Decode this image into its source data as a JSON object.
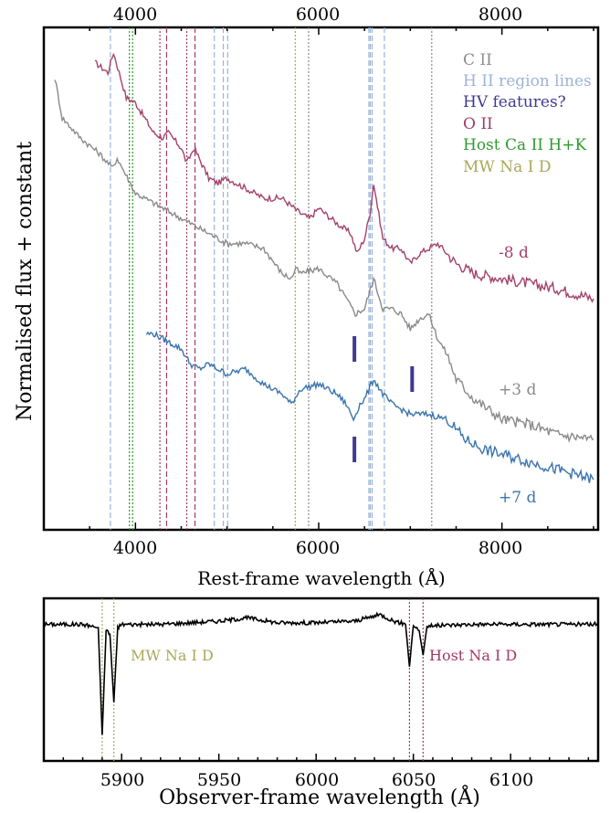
{
  "chart_data": [
    {
      "type": "line",
      "xlabel": "Rest-frame wavelength (Å)",
      "ylabel": "Normalised flux + constant",
      "xlim": [
        3000,
        9050
      ],
      "ylim": [
        0,
        1
      ],
      "x_ticks_bottom": [
        "4000",
        "6000",
        "8000"
      ],
      "x_ticks_top": [
        "4000",
        "6000",
        "8000"
      ],
      "legend_placement": "top-right",
      "legend": [
        {
          "label": "C II",
          "color": "#8c8c8c"
        },
        {
          "label": "H II region lines",
          "color": "#9bb4d6"
        },
        {
          "label": "HV features?",
          "color": "#3f3a8f"
        },
        {
          "label": "O II",
          "color": "#a23a64"
        },
        {
          "label": "Host Ca II H+K",
          "color": "#2f9a2f"
        },
        {
          "label": "MW Na I D",
          "color": "#a8a85a"
        }
      ],
      "series": [
        {
          "label": "-8 d",
          "color": "#a4426b",
          "x": [
            3560,
            3700,
            3760,
            3900,
            4000,
            4100,
            4200,
            4300,
            4360,
            4500,
            4560,
            4640,
            4800,
            4900,
            5000,
            5200,
            5400,
            5600,
            5800,
            5900,
            6000,
            6200,
            6350,
            6420,
            6500,
            6560,
            6600,
            6700,
            6800,
            6900,
            7000,
            7100,
            7300,
            7500,
            7700,
            8000,
            8300,
            8600,
            9000
          ],
          "y": [
            0.93,
            0.91,
            0.95,
            0.86,
            0.85,
            0.82,
            0.79,
            0.78,
            0.79,
            0.76,
            0.73,
            0.76,
            0.7,
            0.69,
            0.7,
            0.68,
            0.66,
            0.66,
            0.63,
            0.62,
            0.64,
            0.61,
            0.59,
            0.55,
            0.58,
            0.63,
            0.69,
            0.58,
            0.56,
            0.56,
            0.53,
            0.55,
            0.57,
            0.53,
            0.51,
            0.5,
            0.49,
            0.48,
            0.46
          ]
        },
        {
          "label": "+3 d",
          "color": "#8a8a8a",
          "x": [
            3120,
            3200,
            3400,
            3600,
            3750,
            3800,
            4000,
            4200,
            4400,
            4600,
            4800,
            5000,
            5200,
            5400,
            5600,
            5700,
            5750,
            5800,
            6000,
            6200,
            6400,
            6500,
            6600,
            6700,
            6800,
            6900,
            7000,
            7100,
            7200,
            7300,
            7400,
            7500,
            7700,
            8000,
            8300,
            8600,
            9000
          ],
          "y": [
            0.9,
            0.82,
            0.78,
            0.75,
            0.72,
            0.74,
            0.67,
            0.65,
            0.63,
            0.61,
            0.59,
            0.57,
            0.57,
            0.56,
            0.51,
            0.5,
            0.52,
            0.51,
            0.52,
            0.49,
            0.43,
            0.44,
            0.5,
            0.44,
            0.44,
            0.43,
            0.4,
            0.42,
            0.43,
            0.38,
            0.35,
            0.3,
            0.26,
            0.22,
            0.21,
            0.19,
            0.18
          ]
        },
        {
          "label": "+7 d",
          "color": "#3a74ad",
          "x": [
            4120,
            4200,
            4300,
            4400,
            4500,
            4600,
            4700,
            4800,
            4900,
            5000,
            5200,
            5400,
            5600,
            5700,
            5800,
            6000,
            6200,
            6300,
            6380,
            6450,
            6500,
            6600,
            6700,
            6800,
            7000,
            7200,
            7400,
            7600,
            7800,
            8000,
            8400,
            8800,
            9000
          ],
          "y": [
            0.39,
            0.39,
            0.38,
            0.37,
            0.36,
            0.33,
            0.32,
            0.33,
            0.32,
            0.31,
            0.32,
            0.29,
            0.27,
            0.25,
            0.28,
            0.29,
            0.27,
            0.25,
            0.22,
            0.25,
            0.26,
            0.3,
            0.27,
            0.25,
            0.23,
            0.23,
            0.22,
            0.18,
            0.16,
            0.15,
            0.13,
            0.11,
            0.1
          ]
        }
      ],
      "vertical_lines": [
        {
          "x": 3727,
          "color": "#9bb4d6",
          "style": "dashed"
        },
        {
          "x": 3934,
          "color": "#2f9a2f",
          "style": "dotted"
        },
        {
          "x": 3969,
          "color": "#2f9a2f",
          "style": "dotted"
        },
        {
          "x": 4267,
          "color": "#a23a64",
          "style": "dotted"
        },
        {
          "x": 4340,
          "color": "#a23a64",
          "style": "dashed"
        },
        {
          "x": 4560,
          "color": "#a23a64",
          "style": "dotted"
        },
        {
          "x": 4650,
          "color": "#a23a64",
          "style": "dashed"
        },
        {
          "x": 4861,
          "color": "#9bb4d6",
          "style": "dashed"
        },
        {
          "x": 4959,
          "color": "#9bb4d6",
          "style": "dashed"
        },
        {
          "x": 5007,
          "color": "#9bb4d6",
          "style": "dashed"
        },
        {
          "x": 5744,
          "color": "#a8a85a",
          "style": "dotted"
        },
        {
          "x": 5890,
          "color": "#8c8c8c",
          "style": "dotted"
        },
        {
          "x": 6548,
          "color": "#9bb4d6",
          "style": "dashed"
        },
        {
          "x": 6563,
          "color": "#9bb4d6",
          "style": "dashed"
        },
        {
          "x": 6583,
          "color": "#9bb4d6",
          "style": "dashed"
        },
        {
          "x": 6717,
          "color": "#9bb4d6",
          "style": "dashed"
        },
        {
          "x": 7234,
          "color": "#8c8c8c",
          "style": "dotted"
        }
      ],
      "hv_markers": [
        {
          "x": 6390,
          "y": 0.36
        },
        {
          "x": 7020,
          "y": 0.3
        },
        {
          "x": 6390,
          "y": 0.16
        }
      ]
    },
    {
      "type": "line",
      "xlabel": "Observer-frame wavelength (Å)",
      "xlim": [
        5860,
        6145
      ],
      "ylim": [
        0,
        1
      ],
      "x_ticks": [
        "5900",
        "5950",
        "6000",
        "6050",
        "6100"
      ],
      "x_tick_values": [
        5900,
        5950,
        6000,
        6050,
        6100
      ],
      "annotations": [
        {
          "text": "MW Na I D",
          "color": "#a8a85a"
        },
        {
          "text": "Host Na I D",
          "color": "#a23a64"
        }
      ],
      "vertical_lines": [
        {
          "x": 5890,
          "color": "#a8a85a"
        },
        {
          "x": 5896,
          "color": "#a8a85a"
        },
        {
          "x": 6048,
          "color": "#a23a64"
        },
        {
          "x": 6055,
          "color": "#a23a64"
        }
      ],
      "series": [
        {
          "color": "#000000",
          "x": [
            5860,
            5880,
            5888,
            5890,
            5892,
            5894,
            5896,
            5898,
            5900,
            5920,
            5950,
            5965,
            5980,
            6000,
            6020,
            6033,
            6040,
            6046,
            6048,
            6050,
            6053,
            6055,
            6057,
            6080,
            6100,
            6145
          ],
          "y": [
            0.84,
            0.84,
            0.82,
            0.16,
            0.8,
            0.78,
            0.36,
            0.82,
            0.84,
            0.84,
            0.86,
            0.88,
            0.85,
            0.85,
            0.86,
            0.9,
            0.86,
            0.84,
            0.58,
            0.84,
            0.8,
            0.65,
            0.83,
            0.84,
            0.84,
            0.84
          ]
        }
      ]
    }
  ]
}
